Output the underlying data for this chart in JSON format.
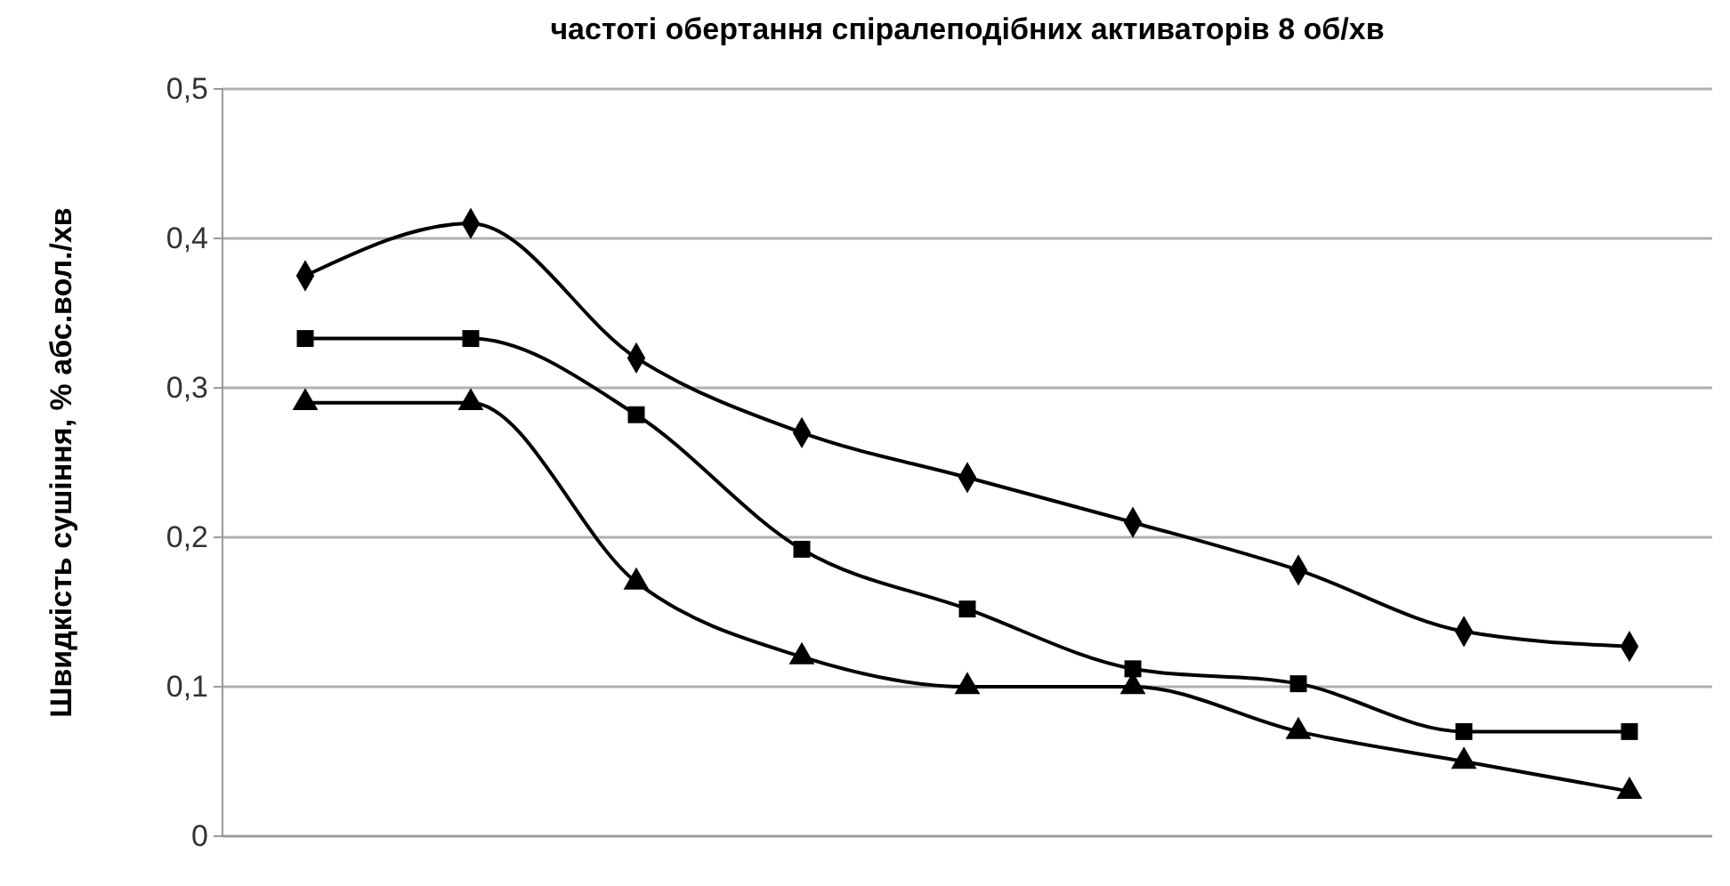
{
  "chart_data": {
    "type": "line",
    "title": "частоті обертання спіралеподібних активаторів 8 об/хв",
    "ylabel": "Швидкість сушіння, % абс.вол./хв",
    "categories": [
      null,
      null,
      null,
      null,
      null,
      null,
      null,
      null,
      null
    ],
    "series": [
      {
        "color": "#000000",
        "marker": "diamond",
        "values": [
          0.375,
          0.41,
          0.32,
          0.27,
          0.24,
          0.21,
          0.178,
          0.137,
          0.127
        ]
      },
      {
        "color": "#000000",
        "marker": "square",
        "values": [
          0.333,
          0.333,
          0.282,
          0.192,
          0.152,
          0.112,
          0.102,
          0.07,
          0.07
        ]
      },
      {
        "color": "#000000",
        "marker": "triangle",
        "values": [
          0.29,
          0.29,
          0.17,
          0.12,
          0.1,
          0.1,
          0.07,
          0.05,
          0.03
        ]
      }
    ],
    "ylim": [
      0,
      0.5
    ],
    "yticks": [
      {
        "value": 0,
        "label": "0"
      },
      {
        "value": 0.1,
        "label": "0,1"
      },
      {
        "value": 0.2,
        "label": "0,2"
      },
      {
        "value": 0.3,
        "label": "0,3"
      },
      {
        "value": 0.4,
        "label": "0,4"
      },
      {
        "value": 0.5,
        "label": "0,5"
      }
    ],
    "grid": "y",
    "line_style": "solid"
  }
}
